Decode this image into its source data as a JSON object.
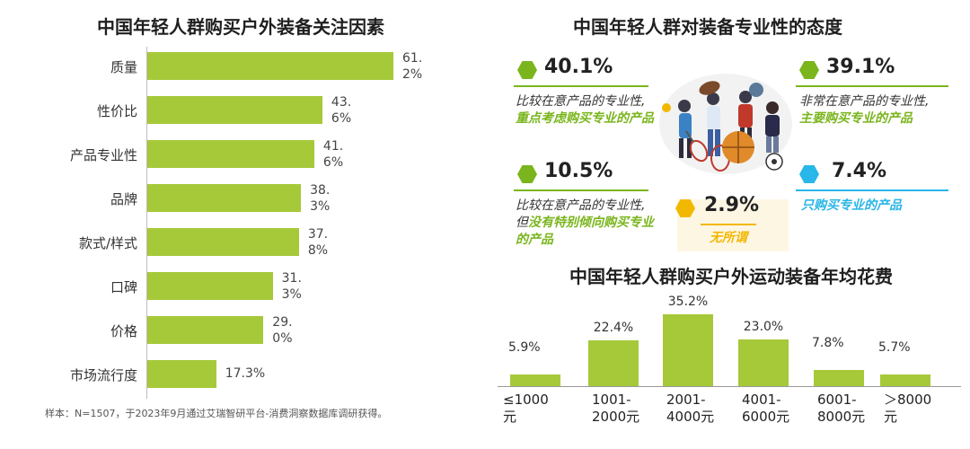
{
  "left_chart": {
    "title": "中国年轻人群购买户外装备关注因素",
    "footnote": "样本：N=1507，于2023年9月通过艾瑞智研平台-消费洞察数据库调研获得。"
  },
  "attitude": {
    "title": "中国年轻人群对装备专业性的态度",
    "items": [
      {
        "pct": "40.1%",
        "line1": "比较在意产品的专业性,",
        "hl": "重点考虑购买专业的产品",
        "color": "#7ab51d"
      },
      {
        "pct": "39.1%",
        "line1": "非常在意产品的专业性,",
        "hl": "主要购买专业的产品",
        "color": "#7ab51d"
      },
      {
        "pct": "10.5%",
        "line1": "比较在意产品的专业性,",
        "pre": "但",
        "hl": "没有特别倾向购买专业的产品",
        "color": "#7ab51d"
      },
      {
        "pct": "2.9%",
        "hl": "无所谓",
        "color": "#f2b800"
      },
      {
        "pct": "7.4%",
        "hl": "只购买专业的产品",
        "color": "#29b6e8"
      }
    ]
  },
  "bottom_chart": {
    "title": "中国年轻人群购买户外运动装备年均花费"
  },
  "colors": {
    "bar": "#a6c93a",
    "green": "#7ab51d",
    "yellow": "#f2b800",
    "blue": "#29b6e8"
  },
  "chart_data": [
    {
      "type": "bar",
      "orientation": "horizontal",
      "title": "中国年轻人群购买户外装备关注因素",
      "categories": [
        "质量",
        "性价比",
        "产品专业性",
        "品牌",
        "款式/样式",
        "口碑",
        "价格",
        "市场流行度"
      ],
      "values": [
        61.2,
        43.6,
        41.6,
        38.3,
        37.8,
        31.3,
        29.0,
        17.3
      ],
      "value_labels": [
        "61.2%",
        "43.6%",
        "41.6%",
        "38.3%",
        "37.8%",
        "31.3%",
        "29.0%",
        "17.3%"
      ],
      "unit": "%"
    },
    {
      "type": "pie",
      "title": "中国年轻人群对装备专业性的态度",
      "categories": [
        "比较在意产品的专业性,重点考虑购买专业的产品",
        "非常在意产品的专业性,主要购买专业的产品",
        "比较在意产品的专业性,但没有特别倾向购买专业的产品",
        "无所谓",
        "只购买专业的产品"
      ],
      "values": [
        40.1,
        39.1,
        10.5,
        2.9,
        7.4
      ],
      "unit": "%"
    },
    {
      "type": "bar",
      "orientation": "vertical",
      "title": "中国年轻人群购买户外运动装备年均花费",
      "categories": [
        "≤1000元",
        "1001-2000元",
        "2001-4000元",
        "4001-6000元",
        "6001-8000元",
        "＞8000元"
      ],
      "values": [
        5.9,
        22.4,
        35.2,
        23.0,
        7.8,
        5.7
      ],
      "value_labels": [
        "5.9%",
        "22.4%",
        "35.2%",
        "23.0%",
        "7.8%",
        "5.7%"
      ],
      "unit": "%"
    }
  ]
}
